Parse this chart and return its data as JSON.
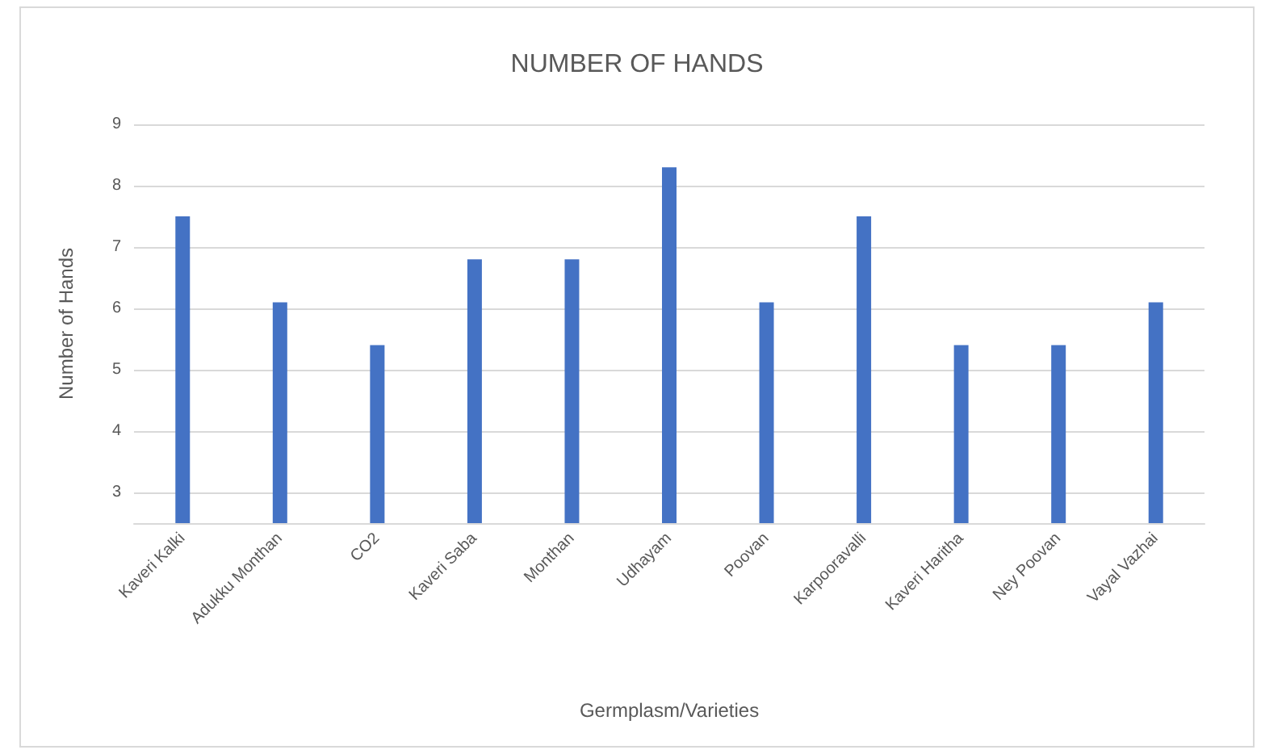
{
  "chart_data": {
    "type": "bar",
    "title": "NUMBER OF HANDS",
    "xlabel": "Germplasm/Varieties",
    "ylabel": "Number of Hands",
    "categories": [
      "Kaveri Kalki",
      "Adukku Monthan",
      "CO2",
      "Kaveri Saba",
      "Monthan",
      "Udhayam",
      "Poovan",
      "Karpooravalli",
      "Kaveri Haritha",
      "Ney Poovan",
      "Vayal Vazhai"
    ],
    "values": [
      7.5,
      6.1,
      5.4,
      6.8,
      6.8,
      8.3,
      6.1,
      7.5,
      5.4,
      5.4,
      6.1
    ],
    "color": "#4472c4",
    "ylim": [
      2.5,
      9
    ],
    "yticks": [
      3,
      4,
      5,
      6,
      7,
      8,
      9
    ],
    "grid": "y"
  }
}
